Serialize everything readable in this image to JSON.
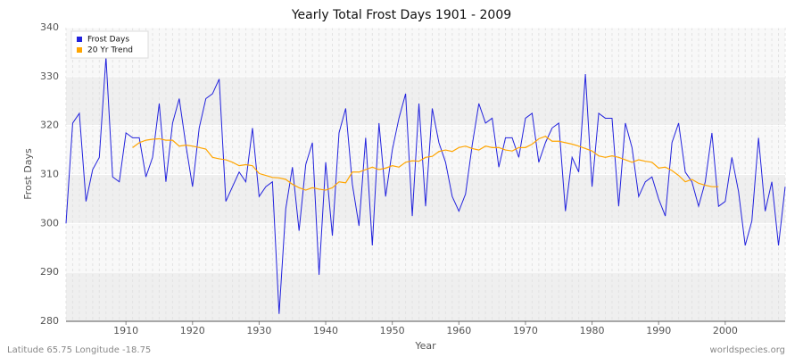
{
  "chart_data": {
    "type": "line",
    "title": "Yearly Total Frost Days 1901 - 2009",
    "x_label": "Year",
    "y_label": "Frost Days",
    "footer_left": "Latitude 65.75 Longitude -18.75",
    "footer_right": "worldspecies.org",
    "legend_position": "top-left",
    "grid": true,
    "x": [
      1901,
      1902,
      1903,
      1904,
      1905,
      1906,
      1907,
      1908,
      1909,
      1910,
      1911,
      1912,
      1913,
      1914,
      1915,
      1916,
      1917,
      1918,
      1919,
      1920,
      1921,
      1922,
      1923,
      1924,
      1925,
      1926,
      1927,
      1928,
      1929,
      1930,
      1931,
      1932,
      1933,
      1934,
      1935,
      1936,
      1937,
      1938,
      1939,
      1940,
      1941,
      1942,
      1943,
      1944,
      1945,
      1946,
      1947,
      1948,
      1949,
      1950,
      1951,
      1952,
      1953,
      1954,
      1955,
      1956,
      1957,
      1958,
      1959,
      1960,
      1961,
      1962,
      1963,
      1964,
      1965,
      1966,
      1967,
      1968,
      1969,
      1970,
      1971,
      1972,
      1973,
      1974,
      1975,
      1976,
      1977,
      1978,
      1979,
      1980,
      1981,
      1982,
      1983,
      1984,
      1985,
      1986,
      1987,
      1988,
      1989,
      1990,
      1991,
      1992,
      1993,
      1994,
      1995,
      1996,
      1997,
      1998,
      1999,
      2000,
      2001,
      2002,
      2003,
      2004,
      2005,
      2006,
      2007,
      2008,
      2009
    ],
    "series": [
      {
        "name": "Frost Days",
        "color": "#2222dd",
        "values": [
          300,
          320.5,
          322.5,
          304.5,
          311,
          313.5,
          334,
          309.5,
          308.5,
          318.5,
          317.5,
          317.5,
          309.5,
          313.5,
          324.5,
          308.5,
          320.5,
          325.5,
          316,
          307.5,
          319.5,
          325.5,
          326.5,
          329.5,
          304.5,
          307.5,
          310.5,
          308.5,
          319.5,
          305.5,
          307.5,
          308.5,
          281.5,
          303,
          311.5,
          298.5,
          312,
          316.5,
          289.5,
          312.5,
          297.5,
          318.5,
          323.5,
          308,
          299.5,
          317.5,
          295.5,
          320.5,
          305.5,
          315,
          321.5,
          326.5,
          301.5,
          324.5,
          303.5,
          323.5,
          316.5,
          312.5,
          305.5,
          302.5,
          306,
          316,
          324.5,
          320.5,
          321.5,
          311.5,
          317.5,
          317.5,
          313.5,
          321.5,
          322.5,
          312.5,
          316.5,
          319.5,
          320.5,
          302.5,
          313.5,
          310.5,
          330.5,
          307.5,
          322.5,
          321.5,
          321.5,
          303.5,
          320.5,
          315.5,
          305.5,
          308.5,
          309.5,
          305,
          301.5,
          316.5,
          320.5,
          310.5,
          308.5,
          303.5,
          308.5,
          318.5,
          303.5,
          304.5,
          313.5,
          306.5,
          295.5,
          300.5,
          317.5,
          302.5,
          308.5,
          295.5,
          307.5
        ]
      },
      {
        "name": "20 Yr Trend",
        "color": "#ffa500",
        "values": [
          null,
          null,
          null,
          null,
          null,
          null,
          null,
          null,
          null,
          null,
          315.5,
          316.5,
          317,
          317.2,
          317.3,
          317,
          317,
          315.8,
          316,
          315.8,
          315.5,
          315.2,
          313.5,
          313.2,
          313,
          312.5,
          311.8,
          312,
          311.8,
          310.2,
          309.8,
          309.4,
          309.3,
          309,
          308,
          307.3,
          306.8,
          307.3,
          307,
          306.8,
          307.3,
          308.5,
          308.3,
          310.5,
          310.5,
          311,
          311.5,
          311,
          311.3,
          311.8,
          311.5,
          312.5,
          312.8,
          312.7,
          313.5,
          313.7,
          314.7,
          315,
          314.7,
          315.5,
          315.8,
          315.3,
          315,
          315.8,
          315.5,
          315.5,
          315,
          314.8,
          315.5,
          315.5,
          316.2,
          317.3,
          317.8,
          316.8,
          316.8,
          316.5,
          316.2,
          315.8,
          315.3,
          314.8,
          313.8,
          313.5,
          313.8,
          313.5,
          313,
          312.5,
          313,
          312.7,
          312.5,
          311.3,
          311.5,
          310.8,
          309.8,
          308.5,
          309,
          308.2,
          307.8,
          307.5,
          307.5,
          null,
          null,
          null,
          null,
          null,
          null,
          null,
          null,
          null,
          null
        ]
      }
    ],
    "xlim": [
      1901,
      2009
    ],
    "xticks": [
      1910,
      1920,
      1930,
      1940,
      1950,
      1960,
      1970,
      1980,
      1990,
      2000
    ],
    "ylim": [
      280,
      340
    ],
    "yticks": [
      280,
      290,
      300,
      310,
      320,
      330,
      340
    ]
  }
}
